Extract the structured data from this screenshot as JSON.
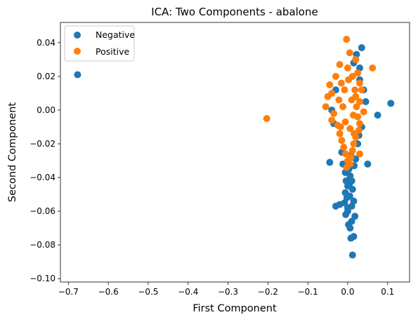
{
  "chart_data": {
    "type": "scatter",
    "title": "ICA: Two Components - abalone",
    "xlabel": "First Component",
    "ylabel": "Second Component",
    "xlim": [
      -0.72,
      0.155
    ],
    "ylim": [
      -0.102,
      0.052
    ],
    "xticks": [
      -0.7,
      -0.6,
      -0.5,
      -0.4,
      -0.3,
      -0.2,
      -0.1,
      0.0,
      0.1
    ],
    "xtick_labels": [
      "−0.7",
      "−0.6",
      "−0.5",
      "−0.4",
      "−0.3",
      "−0.2",
      "−0.1",
      "0.0",
      "0.1"
    ],
    "yticks": [
      -0.1,
      -0.08,
      -0.06,
      -0.04,
      -0.02,
      0.0,
      0.02,
      0.04
    ],
    "ytick_labels": [
      "−0.10",
      "−0.08",
      "−0.06",
      "−0.04",
      "−0.02",
      "0.00",
      "0.02",
      "0.04"
    ],
    "grid": false,
    "legend_position": "top-left",
    "series": [
      {
        "name": "Negative",
        "color": "#1f77b4",
        "points": [
          [
            -0.677,
            0.021
          ],
          [
            0.108,
            0.004
          ],
          [
            0.075,
            -0.003
          ],
          [
            0.035,
            0.037
          ],
          [
            0.022,
            0.033
          ],
          [
            -0.045,
            -0.031
          ],
          [
            0.05,
            -0.032
          ],
          [
            -0.03,
            -0.057
          ],
          [
            -0.02,
            -0.056
          ],
          [
            0.012,
            -0.086
          ],
          [
            0.008,
            -0.076
          ],
          [
            0.015,
            -0.075
          ],
          [
            0.002,
            -0.068
          ],
          [
            0.01,
            -0.066
          ],
          [
            -0.005,
            -0.062
          ],
          [
            0.018,
            -0.063
          ],
          [
            0.0,
            -0.058
          ],
          [
            0.01,
            -0.057
          ],
          [
            -0.008,
            -0.055
          ],
          [
            0.015,
            -0.054
          ],
          [
            0.005,
            -0.051
          ],
          [
            -0.006,
            -0.049
          ],
          [
            0.012,
            -0.047
          ],
          [
            0.0,
            -0.045
          ],
          [
            -0.004,
            -0.042
          ],
          [
            0.01,
            -0.042
          ],
          [
            0.006,
            -0.039
          ],
          [
            -0.006,
            -0.037
          ],
          [
            0.003,
            -0.035
          ],
          [
            0.016,
            -0.033
          ],
          [
            -0.012,
            -0.032
          ],
          [
            0.02,
            -0.029
          ],
          [
            0.008,
            -0.027
          ],
          [
            -0.015,
            -0.025
          ],
          [
            0.025,
            -0.02
          ],
          [
            0.02,
            0.03
          ],
          [
            0.03,
            0.025
          ],
          [
            0.04,
            0.012
          ],
          [
            0.045,
            0.005
          ],
          [
            0.035,
            -0.01
          ],
          [
            -0.03,
            0.012
          ],
          [
            -0.04,
            0.0
          ],
          [
            0.015,
            0.028
          ],
          [
            0.03,
            0.018
          ],
          [
            -0.035,
            -0.008
          ],
          [
            0.028,
            -0.015
          ],
          [
            0.0,
            -0.06
          ],
          [
            0.006,
            -0.07
          ],
          [
            -0.002,
            -0.052
          ],
          [
            0.004,
            -0.044
          ]
        ]
      },
      {
        "name": "Positive",
        "color": "#ff7f0e",
        "points": [
          [
            -0.203,
            -0.005
          ],
          [
            -0.003,
            0.042
          ],
          [
            0.062,
            0.025
          ],
          [
            0.005,
            0.034
          ],
          [
            0.02,
            0.03
          ],
          [
            -0.02,
            0.027
          ],
          [
            0.025,
            0.022
          ],
          [
            -0.03,
            0.02
          ],
          [
            0.03,
            0.016
          ],
          [
            -0.045,
            0.015
          ],
          [
            0.035,
            0.012
          ],
          [
            -0.04,
            0.01
          ],
          [
            0.02,
            0.008
          ],
          [
            -0.05,
            0.008
          ],
          [
            0.03,
            0.005
          ],
          [
            -0.055,
            0.002
          ],
          [
            0.04,
            -0.001
          ],
          [
            -0.035,
            -0.002
          ],
          [
            0.025,
            -0.004
          ],
          [
            -0.04,
            -0.006
          ],
          [
            0.03,
            -0.008
          ],
          [
            -0.025,
            -0.009
          ],
          [
            0.028,
            -0.012
          ],
          [
            -0.02,
            -0.014
          ],
          [
            0.02,
            -0.016
          ],
          [
            -0.015,
            -0.018
          ],
          [
            0.015,
            -0.02
          ],
          [
            -0.01,
            -0.022
          ],
          [
            0.012,
            -0.024
          ],
          [
            -0.005,
            -0.026
          ],
          [
            0.008,
            -0.028
          ],
          [
            0.0,
            -0.03
          ],
          [
            0.006,
            -0.032
          ],
          [
            -0.003,
            -0.034
          ],
          [
            0.03,
            -0.026
          ],
          [
            0.002,
            0.018
          ],
          [
            -0.008,
            0.012
          ],
          [
            0.01,
            0.006
          ],
          [
            -0.012,
            0.002
          ],
          [
            0.014,
            -0.003
          ],
          [
            -0.006,
            -0.007
          ],
          [
            0.006,
            -0.011
          ],
          [
            0.0,
            0.025
          ],
          [
            0.012,
            0.02
          ],
          [
            -0.016,
            0.016
          ],
          [
            0.018,
            0.012
          ],
          [
            -0.022,
            0.006
          ],
          [
            0.022,
            0.002
          ],
          [
            -0.018,
            -0.01
          ],
          [
            0.016,
            -0.014
          ]
        ]
      }
    ]
  }
}
